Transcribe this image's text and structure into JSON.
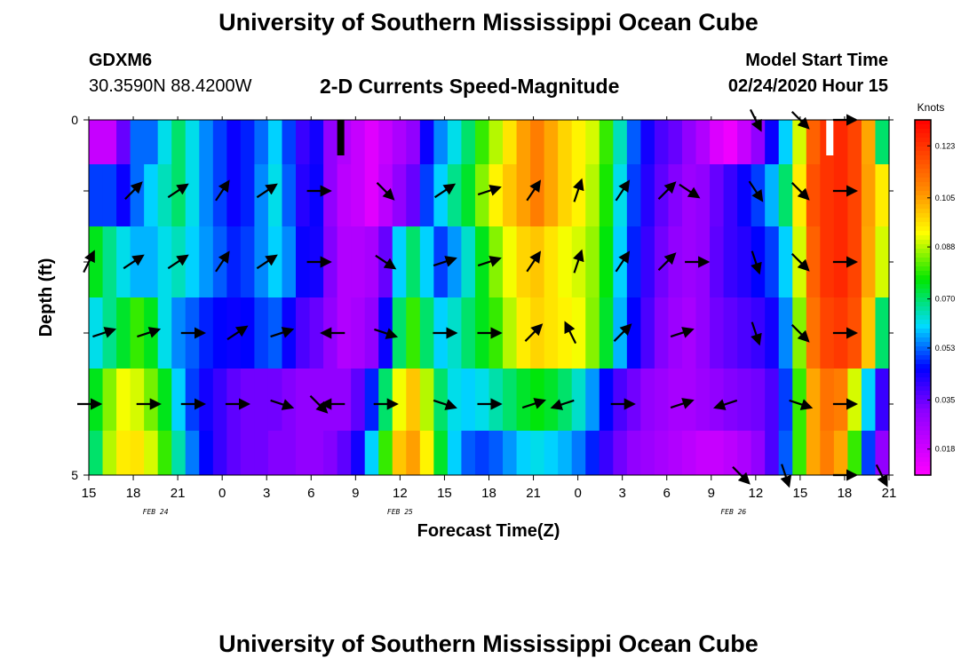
{
  "header": {
    "title": "University of Southern Mississippi Ocean Cube",
    "station_id": "GDXM6",
    "station_coords": "30.3590N 88.4200W",
    "plot_title": "2-D Currents Speed-Magnitude",
    "model_start_label": "Model Start Time",
    "model_start_value": "02/24/2020 Hour 15"
  },
  "footer": {
    "title": "University of Southern Mississippi Ocean Cube"
  },
  "chart_data": {
    "type": "heatmap",
    "title": "2-D Currents Speed-Magnitude",
    "xlabel": "Forecast Time(Z)",
    "ylabel": "Depth (ft)",
    "x_ticks": [
      "15",
      "18",
      "21",
      "0",
      "3",
      "6",
      "9",
      "12",
      "15",
      "18",
      "21",
      "0",
      "3",
      "6",
      "9",
      "12",
      "15",
      "18",
      "21"
    ],
    "date_labels": [
      {
        "label": "FEB 24",
        "tick_index": 1.5
      },
      {
        "label": "FEB 25",
        "tick_index": 7
      },
      {
        "label": "FEB 26",
        "tick_index": 14.5
      }
    ],
    "y_ticks": [
      "0",
      "5"
    ],
    "ylim": [
      0,
      5
    ],
    "colorbar": {
      "unit": "Knots",
      "ticks": [
        "0.123",
        "0.105",
        "0.088",
        "0.070",
        "0.053",
        "0.035",
        "0.018"
      ],
      "range": [
        0.009,
        0.132
      ]
    },
    "hours_range": [
      0,
      54
    ],
    "depth_band_centers_ft": [
      0.25,
      1.0,
      2.0,
      3.0,
      4.0,
      4.75
    ],
    "speed_knots": [
      [
        0.02,
        0.02,
        0.035,
        0.053,
        0.053,
        0.062,
        0.07,
        0.062,
        0.055,
        0.05,
        0.045,
        0.048,
        0.053,
        0.06,
        0.05,
        0.04,
        0.044,
        0.03,
        0.024,
        0.02,
        0.015,
        0.02,
        0.025,
        0.03,
        0.045,
        0.055,
        0.062,
        0.07,
        0.08,
        0.088,
        0.096,
        0.105,
        0.11,
        0.104,
        0.098,
        0.094,
        0.09,
        0.08,
        0.065,
        0.052,
        0.044,
        0.038,
        0.035,
        0.03,
        0.024,
        0.016,
        0.012,
        0.02,
        0.03,
        0.045,
        0.06,
        0.09,
        0.115,
        0.123,
        0.125,
        0.12,
        0.104,
        0.07
      ],
      [
        0.05,
        0.05,
        0.045,
        0.053,
        0.06,
        0.065,
        0.07,
        0.062,
        0.055,
        0.05,
        0.045,
        0.048,
        0.055,
        0.062,
        0.052,
        0.042,
        0.045,
        0.03,
        0.022,
        0.02,
        0.015,
        0.022,
        0.03,
        0.035,
        0.05,
        0.06,
        0.068,
        0.074,
        0.085,
        0.094,
        0.1,
        0.105,
        0.11,
        0.104,
        0.098,
        0.094,
        0.088,
        0.078,
        0.062,
        0.05,
        0.042,
        0.036,
        0.032,
        0.028,
        0.03,
        0.035,
        0.04,
        0.045,
        0.05,
        0.058,
        0.07,
        0.095,
        0.118,
        0.123,
        0.125,
        0.12,
        0.105,
        0.095
      ],
      [
        0.075,
        0.068,
        0.062,
        0.058,
        0.058,
        0.062,
        0.065,
        0.06,
        0.056,
        0.052,
        0.048,
        0.05,
        0.055,
        0.06,
        0.055,
        0.045,
        0.044,
        0.032,
        0.024,
        0.024,
        0.026,
        0.035,
        0.06,
        0.07,
        0.06,
        0.05,
        0.056,
        0.064,
        0.075,
        0.085,
        0.092,
        0.098,
        0.1,
        0.096,
        0.092,
        0.09,
        0.086,
        0.076,
        0.06,
        0.048,
        0.04,
        0.034,
        0.03,
        0.028,
        0.03,
        0.036,
        0.04,
        0.042,
        0.046,
        0.05,
        0.06,
        0.09,
        0.115,
        0.123,
        0.125,
        0.12,
        0.104,
        0.09
      ],
      [
        0.062,
        0.068,
        0.074,
        0.08,
        0.075,
        0.062,
        0.055,
        0.052,
        0.048,
        0.046,
        0.045,
        0.046,
        0.05,
        0.052,
        0.045,
        0.038,
        0.035,
        0.03,
        0.024,
        0.026,
        0.03,
        0.045,
        0.07,
        0.08,
        0.07,
        0.06,
        0.064,
        0.07,
        0.075,
        0.08,
        0.088,
        0.095,
        0.098,
        0.096,
        0.094,
        0.092,
        0.085,
        0.074,
        0.058,
        0.046,
        0.038,
        0.032,
        0.028,
        0.026,
        0.03,
        0.034,
        0.036,
        0.038,
        0.04,
        0.044,
        0.055,
        0.085,
        0.112,
        0.12,
        0.122,
        0.118,
        0.1,
        0.07
      ],
      [
        0.075,
        0.085,
        0.092,
        0.09,
        0.084,
        0.075,
        0.06,
        0.05,
        0.044,
        0.04,
        0.036,
        0.034,
        0.034,
        0.034,
        0.032,
        0.03,
        0.03,
        0.03,
        0.03,
        0.036,
        0.048,
        0.07,
        0.092,
        0.1,
        0.088,
        0.07,
        0.062,
        0.06,
        0.062,
        0.066,
        0.07,
        0.074,
        0.076,
        0.074,
        0.07,
        0.064,
        0.056,
        0.046,
        0.038,
        0.034,
        0.03,
        0.028,
        0.026,
        0.026,
        0.028,
        0.03,
        0.032,
        0.033,
        0.034,
        0.038,
        0.05,
        0.08,
        0.104,
        0.112,
        0.11,
        0.09,
        0.06,
        0.04
      ],
      [
        0.07,
        0.088,
        0.095,
        0.096,
        0.09,
        0.08,
        0.066,
        0.054,
        0.046,
        0.04,
        0.036,
        0.034,
        0.034,
        0.032,
        0.032,
        0.03,
        0.03,
        0.032,
        0.036,
        0.044,
        0.06,
        0.08,
        0.1,
        0.105,
        0.094,
        0.074,
        0.06,
        0.052,
        0.05,
        0.052,
        0.056,
        0.06,
        0.062,
        0.06,
        0.058,
        0.054,
        0.048,
        0.04,
        0.034,
        0.03,
        0.028,
        0.026,
        0.024,
        0.022,
        0.02,
        0.02,
        0.022,
        0.025,
        0.03,
        0.038,
        0.052,
        0.08,
        0.104,
        0.11,
        0.104,
        0.08,
        0.05,
        0.03
      ]
    ],
    "current_vectors": [
      {
        "hour": 0,
        "depth_ft": 2.0,
        "dx": 1,
        "dy": -2
      },
      {
        "hour": 3,
        "depth_ft": 1.0,
        "dx": 2,
        "dy": -2
      },
      {
        "hour": 6,
        "depth_ft": 1.0,
        "dx": 3,
        "dy": -2
      },
      {
        "hour": 9,
        "depth_ft": 1.0,
        "dx": 2,
        "dy": -3
      },
      {
        "hour": 12,
        "depth_ft": 1.0,
        "dx": 3,
        "dy": -2
      },
      {
        "hour": 15.5,
        "depth_ft": 1.0,
        "dx": 5,
        "dy": 0
      },
      {
        "hour": 20,
        "depth_ft": 1.0,
        "dx": 3,
        "dy": 3
      },
      {
        "hour": 24,
        "depth_ft": 1.0,
        "dx": 3,
        "dy": -2
      },
      {
        "hour": 27,
        "depth_ft": 1.0,
        "dx": 3,
        "dy": -1
      },
      {
        "hour": 30,
        "depth_ft": 1.0,
        "dx": 2,
        "dy": -3
      },
      {
        "hour": 33,
        "depth_ft": 1.0,
        "dx": 1,
        "dy": -3
      },
      {
        "hour": 36,
        "depth_ft": 1.0,
        "dx": 2,
        "dy": -3
      },
      {
        "hour": 39,
        "depth_ft": 1.0,
        "dx": 2,
        "dy": -2
      },
      {
        "hour": 40.5,
        "depth_ft": 1.0,
        "dx": 3,
        "dy": 2
      },
      {
        "hour": 45,
        "depth_ft": 1.0,
        "dx": 2,
        "dy": 3
      },
      {
        "hour": 48,
        "depth_ft": 1.0,
        "dx": 2,
        "dy": 2
      },
      {
        "hour": 51,
        "depth_ft": 1.0,
        "dx": 3,
        "dy": 0
      },
      {
        "hour": 3,
        "depth_ft": 2.0,
        "dx": 3,
        "dy": -2
      },
      {
        "hour": 6,
        "depth_ft": 2.0,
        "dx": 3,
        "dy": -2
      },
      {
        "hour": 9,
        "depth_ft": 2.0,
        "dx": 2,
        "dy": -3
      },
      {
        "hour": 12,
        "depth_ft": 2.0,
        "dx": 3,
        "dy": -2
      },
      {
        "hour": 15.5,
        "depth_ft": 2.0,
        "dx": 5,
        "dy": 0
      },
      {
        "hour": 20,
        "depth_ft": 2.0,
        "dx": 3,
        "dy": 2
      },
      {
        "hour": 24,
        "depth_ft": 2.0,
        "dx": 3,
        "dy": -1
      },
      {
        "hour": 27,
        "depth_ft": 2.0,
        "dx": 3,
        "dy": -1
      },
      {
        "hour": 30,
        "depth_ft": 2.0,
        "dx": 2,
        "dy": -3
      },
      {
        "hour": 33,
        "depth_ft": 2.0,
        "dx": 1,
        "dy": -3
      },
      {
        "hour": 36,
        "depth_ft": 2.0,
        "dx": 2,
        "dy": -3
      },
      {
        "hour": 39,
        "depth_ft": 2.0,
        "dx": 2,
        "dy": -2
      },
      {
        "hour": 41,
        "depth_ft": 2.0,
        "dx": 3,
        "dy": 0
      },
      {
        "hour": 45,
        "depth_ft": 2.0,
        "dx": 1,
        "dy": 3
      },
      {
        "hour": 48,
        "depth_ft": 2.0,
        "dx": 2,
        "dy": 2
      },
      {
        "hour": 51,
        "depth_ft": 2.0,
        "dx": 3,
        "dy": 0
      },
      {
        "hour": 1,
        "depth_ft": 3.0,
        "dx": 3,
        "dy": -1
      },
      {
        "hour": 4,
        "depth_ft": 3.0,
        "dx": 3,
        "dy": -1
      },
      {
        "hour": 7,
        "depth_ft": 3.0,
        "dx": 3,
        "dy": 0
      },
      {
        "hour": 10,
        "depth_ft": 3.0,
        "dx": 3,
        "dy": -2
      },
      {
        "hour": 13,
        "depth_ft": 3.0,
        "dx": 3,
        "dy": -1
      },
      {
        "hour": 16.5,
        "depth_ft": 3.0,
        "dx": -3,
        "dy": 0
      },
      {
        "hour": 20,
        "depth_ft": 3.0,
        "dx": 3,
        "dy": 1
      },
      {
        "hour": 24,
        "depth_ft": 3.0,
        "dx": 3,
        "dy": 0
      },
      {
        "hour": 27,
        "depth_ft": 3.0,
        "dx": 3,
        "dy": 0
      },
      {
        "hour": 30,
        "depth_ft": 3.0,
        "dx": 2,
        "dy": -2
      },
      {
        "hour": 32.5,
        "depth_ft": 3.0,
        "dx": -1,
        "dy": -2
      },
      {
        "hour": 36,
        "depth_ft": 3.0,
        "dx": 2,
        "dy": -2
      },
      {
        "hour": 40,
        "depth_ft": 3.0,
        "dx": 3,
        "dy": -1
      },
      {
        "hour": 45,
        "depth_ft": 3.0,
        "dx": 1,
        "dy": 3
      },
      {
        "hour": 48,
        "depth_ft": 3.0,
        "dx": 2,
        "dy": 2
      },
      {
        "hour": 51,
        "depth_ft": 3.0,
        "dx": 3,
        "dy": 0
      },
      {
        "hour": 0,
        "depth_ft": 4.0,
        "dx": 3,
        "dy": 0
      },
      {
        "hour": 4,
        "depth_ft": 4.0,
        "dx": 3,
        "dy": 0
      },
      {
        "hour": 7,
        "depth_ft": 4.0,
        "dx": 3,
        "dy": 0
      },
      {
        "hour": 10,
        "depth_ft": 4.0,
        "dx": 3,
        "dy": 0
      },
      {
        "hour": 13,
        "depth_ft": 4.0,
        "dx": 3,
        "dy": 1
      },
      {
        "hour": 15.5,
        "depth_ft": 4.0,
        "dx": 2,
        "dy": 2
      },
      {
        "hour": 16.5,
        "depth_ft": 4.0,
        "dx": -3,
        "dy": 0
      },
      {
        "hour": 20,
        "depth_ft": 4.0,
        "dx": 3,
        "dy": 0
      },
      {
        "hour": 24,
        "depth_ft": 4.0,
        "dx": 3,
        "dy": 1
      },
      {
        "hour": 27,
        "depth_ft": 4.0,
        "dx": 3,
        "dy": 0
      },
      {
        "hour": 30,
        "depth_ft": 4.0,
        "dx": 3,
        "dy": -1
      },
      {
        "hour": 32,
        "depth_ft": 4.0,
        "dx": -3,
        "dy": 1
      },
      {
        "hour": 36,
        "depth_ft": 4.0,
        "dx": 3,
        "dy": 0
      },
      {
        "hour": 40,
        "depth_ft": 4.0,
        "dx": 3,
        "dy": -1
      },
      {
        "hour": 43,
        "depth_ft": 4.0,
        "dx": -3,
        "dy": 1
      },
      {
        "hour": 48,
        "depth_ft": 4.0,
        "dx": 3,
        "dy": 1
      },
      {
        "hour": 51,
        "depth_ft": 4.0,
        "dx": 3,
        "dy": 0
      },
      {
        "hour": 45,
        "depth_ft": 0.0,
        "dx": 1,
        "dy": 2
      },
      {
        "hour": 48,
        "depth_ft": 0.0,
        "dx": 2,
        "dy": 2
      },
      {
        "hour": 51,
        "depth_ft": 0.0,
        "dx": 3,
        "dy": 0
      },
      {
        "hour": 44,
        "depth_ft": 5.0,
        "dx": 2,
        "dy": 2
      },
      {
        "hour": 47,
        "depth_ft": 5.0,
        "dx": 1,
        "dy": 3
      },
      {
        "hour": 51,
        "depth_ft": 5.0,
        "dx": 3,
        "dy": 0
      },
      {
        "hour": 53.5,
        "depth_ft": 5.0,
        "dx": 1,
        "dy": 2
      }
    ],
    "markers": [
      {
        "hour": 17,
        "depth_from": 0,
        "depth_to": 0.5,
        "color": "#000000"
      },
      {
        "hour": 50,
        "depth_from": 0,
        "depth_to": 0.5,
        "color": "#ffffff"
      }
    ]
  }
}
